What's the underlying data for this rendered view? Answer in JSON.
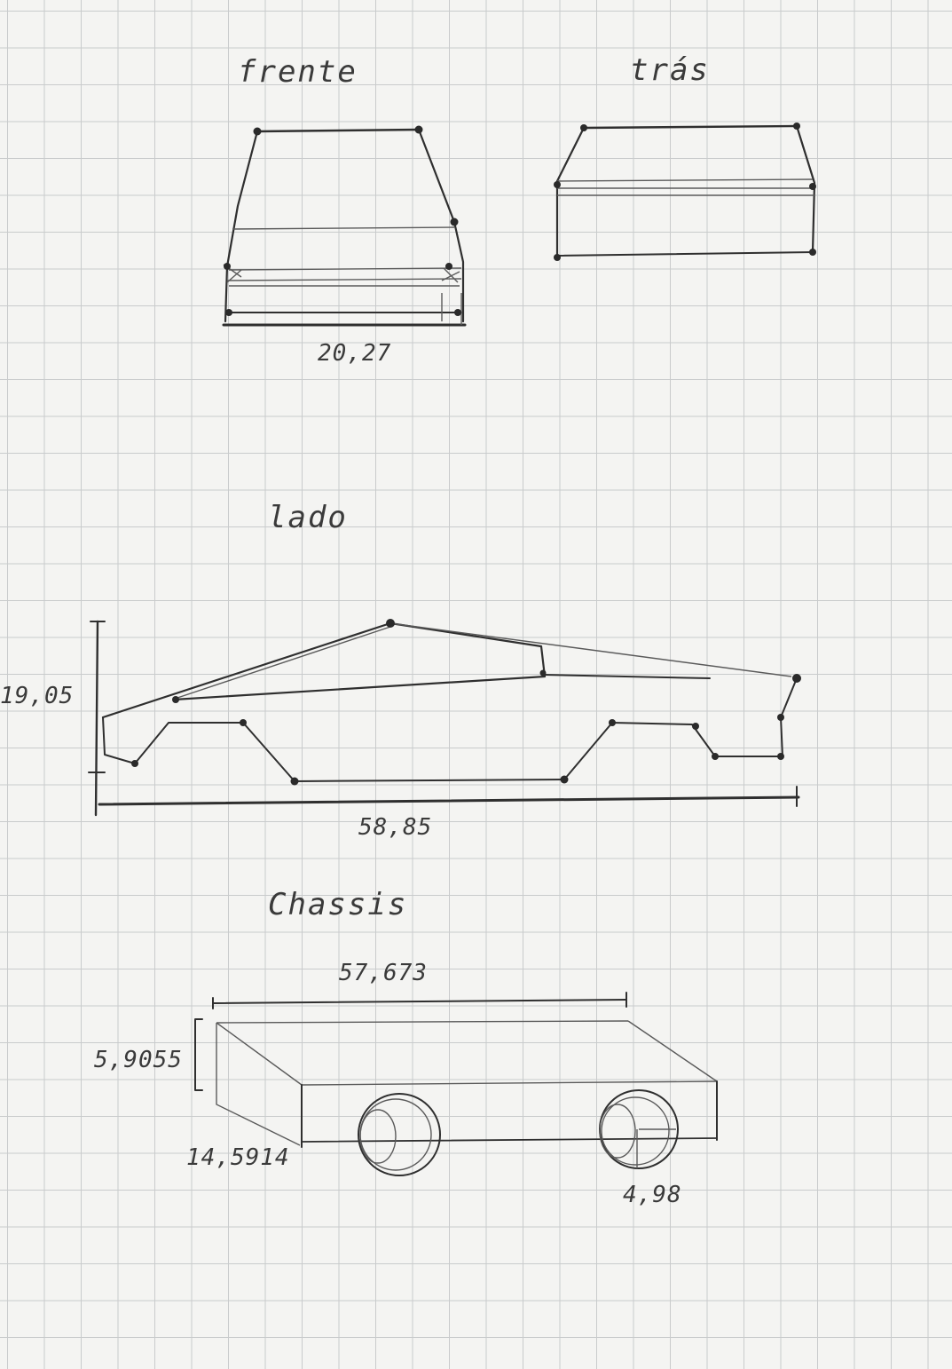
{
  "views": {
    "front": {
      "label": "frente",
      "width": "20,27"
    },
    "rear": {
      "label": "trás"
    },
    "side": {
      "label": "lado",
      "height": "19,05",
      "length": "58,85"
    },
    "chassis": {
      "label": "Chassis",
      "length": "57,673",
      "height": "5,9055",
      "depth": "14,5914",
      "wheel": "4,98"
    }
  }
}
